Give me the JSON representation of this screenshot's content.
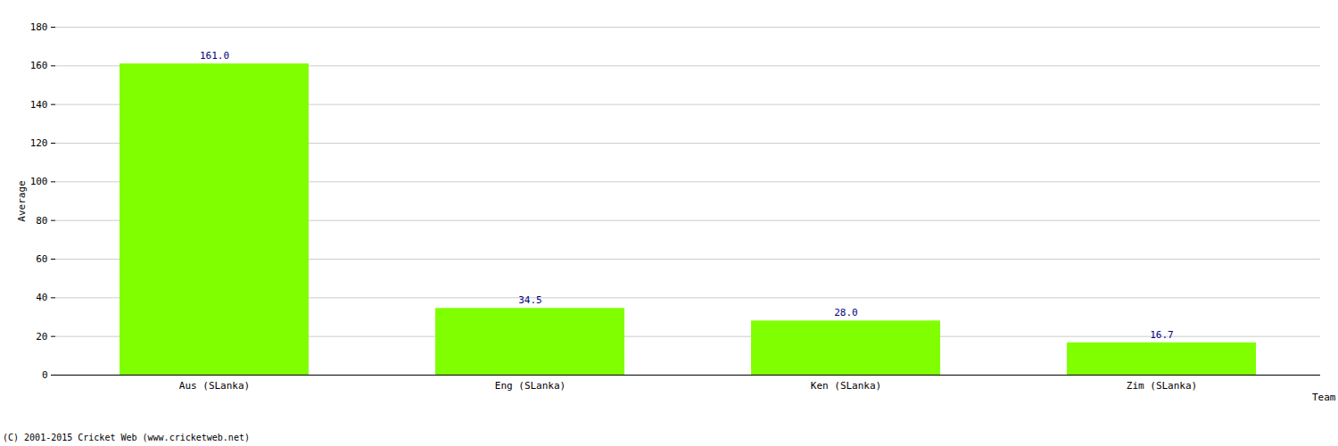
{
  "chart_data": {
    "type": "bar",
    "caption": "(C) 2001-2015 Cricket Web (www.cricketweb.net)",
    "x_label": "Team",
    "y_label": "Average",
    "categories": [
      "Aus (SLanka)",
      "Eng (SLanka)",
      "Ken (SLanka)",
      "Zim (SLanka)"
    ],
    "values": [
      161.0,
      34.5,
      28.0,
      16.7
    ],
    "value_labels": [
      "161.0",
      "34.5",
      "28.0",
      "16.7"
    ],
    "data_labels": true,
    "color": "#80ff00",
    "ylim": [
      0,
      180
    ],
    "yticks": [
      0,
      20,
      40,
      60,
      80,
      100,
      120,
      140,
      160,
      180
    ],
    "grid": true
  }
}
